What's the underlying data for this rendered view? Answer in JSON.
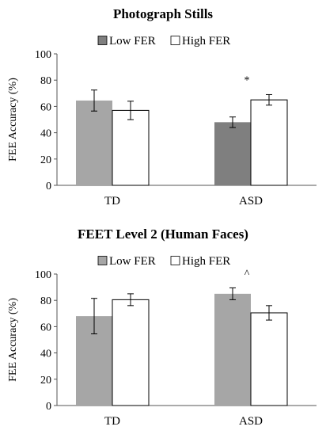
{
  "chart_data": [
    {
      "type": "bar",
      "title": "Photograph Stills",
      "ylabel": "FEE Accuracy (%)",
      "xlabel": "",
      "ylim": [
        0,
        100
      ],
      "yticks": [
        0,
        20,
        40,
        60,
        80,
        100
      ],
      "categories": [
        "TD",
        "ASD"
      ],
      "legend_position": "top-center",
      "series": [
        {
          "name": "Low FER",
          "values": [
            64.5,
            48
          ],
          "errors": [
            8,
            4
          ],
          "colors": [
            "#a6a6a6",
            "#7f7f7f"
          ]
        },
        {
          "name": "High FER",
          "values": [
            57,
            65
          ],
          "errors": [
            7,
            4
          ],
          "colors": [
            "#ffffff",
            "#ffffff"
          ]
        }
      ],
      "legend_colors": [
        "#7f7f7f",
        "#ffffff"
      ],
      "annotations": [
        {
          "category": "ASD",
          "text": "*"
        }
      ]
    },
    {
      "type": "bar",
      "title": "FEET Level 2 (Human Faces)",
      "ylabel": "FEE Accuracy (%)",
      "xlabel": "",
      "ylim": [
        0,
        100
      ],
      "yticks": [
        0,
        20,
        40,
        60,
        80,
        100
      ],
      "categories": [
        "TD",
        "ASD"
      ],
      "legend_position": "top-center",
      "series": [
        {
          "name": "Low FER",
          "values": [
            68,
            85
          ],
          "errors": [
            13.5,
            4.5
          ],
          "colors": [
            "#a6a6a6",
            "#a6a6a6"
          ]
        },
        {
          "name": "High FER",
          "values": [
            80.5,
            70.5
          ],
          "errors": [
            4.5,
            5.5
          ],
          "colors": [
            "#ffffff",
            "#ffffff"
          ]
        }
      ],
      "legend_colors": [
        "#a6a6a6",
        "#ffffff"
      ],
      "annotations": [
        {
          "category": "ASD",
          "text": "^"
        }
      ]
    }
  ]
}
